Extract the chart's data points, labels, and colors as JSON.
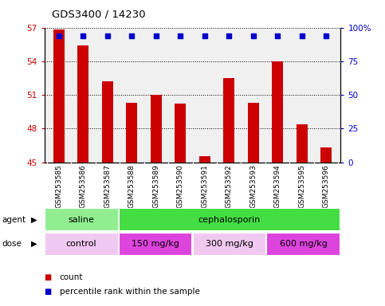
{
  "title": "GDS3400 / 14230",
  "samples": [
    "GSM253585",
    "GSM253586",
    "GSM253587",
    "GSM253588",
    "GSM253589",
    "GSM253590",
    "GSM253591",
    "GSM253592",
    "GSM253593",
    "GSM253594",
    "GSM253595",
    "GSM253596"
  ],
  "bar_values": [
    56.8,
    55.4,
    52.2,
    50.3,
    51.0,
    50.2,
    45.5,
    52.5,
    50.3,
    54.0,
    48.4,
    46.3
  ],
  "percentile_values": [
    94,
    94,
    94,
    94,
    94,
    94,
    94,
    94,
    94,
    94,
    94,
    94
  ],
  "bar_color": "#cc0000",
  "percentile_color": "#0000cc",
  "ylim_left": [
    45,
    57
  ],
  "ylim_right": [
    0,
    100
  ],
  "yticks_left": [
    45,
    48,
    51,
    54,
    57
  ],
  "yticks_right": [
    0,
    25,
    50,
    75,
    100
  ],
  "ytick_labels_right": [
    "0",
    "25",
    "50",
    "75",
    "100%"
  ],
  "agent_groups": [
    {
      "label": "saline",
      "start": 0,
      "end": 3,
      "color": "#90ee90"
    },
    {
      "label": "cephalosporin",
      "start": 3,
      "end": 12,
      "color": "#44dd44"
    }
  ],
  "dose_groups": [
    {
      "label": "control",
      "start": 0,
      "end": 3,
      "color": "#f0c8f0"
    },
    {
      "label": "150 mg/kg",
      "start": 3,
      "end": 6,
      "color": "#dd44dd"
    },
    {
      "label": "300 mg/kg",
      "start": 6,
      "end": 9,
      "color": "#f0c8f0"
    },
    {
      "label": "600 mg/kg",
      "start": 9,
      "end": 12,
      "color": "#dd44dd"
    }
  ],
  "legend_count_color": "#cc0000",
  "legend_percentile_color": "#0000cc",
  "background_color": "#ffffff",
  "plot_bg_color": "#f0f0f0",
  "tick_bg_color": "#d0d0d0"
}
